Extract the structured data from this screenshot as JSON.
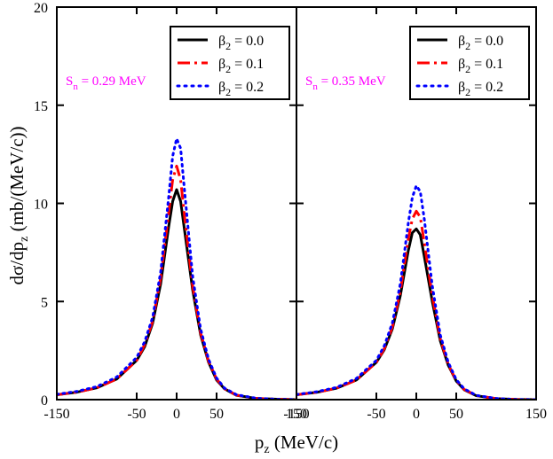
{
  "chart_data": {
    "type": "line",
    "shared": {
      "xlabel_main": "p",
      "xlabel_sub": "z",
      "xlabel_rest": " (MeV/c)",
      "ylabel_main": "dσ/dp",
      "ylabel_sub": "z",
      "ylabel_rest": " (mb/(MeV/c))",
      "xlim": [
        -150,
        150
      ],
      "ylim": [
        0,
        20
      ],
      "xticks": [
        -150,
        -50,
        0,
        50,
        150
      ],
      "yticks": [
        0,
        5,
        10,
        15,
        20
      ],
      "legend": [
        {
          "prefix": "β",
          "sub": "2",
          "rest": " = 0.0",
          "color": "#000000",
          "dash": "solid"
        },
        {
          "prefix": "β",
          "sub": "2",
          "rest": " = 0.1",
          "color": "#ff0000",
          "dash": "dashdot"
        },
        {
          "prefix": "β",
          "sub": "2",
          "rest": " = 0.2",
          "color": "#0000ff",
          "dash": "dotted"
        }
      ]
    },
    "panels": [
      {
        "annotation": {
          "main": "S",
          "sub": "n",
          "rest": " = 0.29 MeV",
          "color": "#ff00ff"
        },
        "series": [
          {
            "name": "β2 = 0.0",
            "x": [
              -150,
              -125,
              -100,
              -75,
              -50,
              -40,
              -30,
              -20,
              -10,
              -5,
              0,
              5,
              10,
              20,
              30,
              40,
              50,
              60,
              75,
              100,
              125,
              150
            ],
            "y": [
              0.25,
              0.38,
              0.6,
              1.05,
              2.0,
              2.7,
              3.9,
              5.9,
              8.8,
              10.1,
              10.7,
              10.1,
              8.6,
              5.6,
              3.3,
              1.9,
              1.0,
              0.55,
              0.22,
              0.06,
              0.02,
              0.0
            ]
          },
          {
            "name": "β2 = 0.1",
            "x": [
              -150,
              -125,
              -100,
              -75,
              -50,
              -40,
              -30,
              -20,
              -10,
              -5,
              0,
              5,
              10,
              20,
              30,
              40,
              50,
              60,
              75,
              100,
              125,
              150
            ],
            "y": [
              0.25,
              0.38,
              0.6,
              1.05,
              2.0,
              2.8,
              4.0,
              6.2,
              9.5,
              11.2,
              11.9,
              11.2,
              9.3,
              5.8,
              3.4,
              1.95,
              1.05,
              0.55,
              0.23,
              0.06,
              0.02,
              0.0
            ]
          },
          {
            "name": "β2 = 0.2",
            "x": [
              -150,
              -125,
              -100,
              -75,
              -50,
              -40,
              -30,
              -20,
              -10,
              -5,
              0,
              5,
              10,
              20,
              30,
              40,
              50,
              60,
              75,
              100,
              125,
              150
            ],
            "y": [
              0.27,
              0.42,
              0.66,
              1.15,
              2.15,
              2.95,
              4.2,
              6.5,
              10.3,
              12.4,
              13.3,
              12.8,
              10.6,
              6.3,
              3.6,
              2.05,
              1.1,
              0.58,
              0.25,
              0.07,
              0.02,
              0.0
            ]
          }
        ]
      },
      {
        "annotation": {
          "main": "S",
          "sub": "n",
          "rest": " = 0.35 MeV",
          "color": "#ff00ff"
        },
        "series": [
          {
            "name": "β2 = 0.0",
            "x": [
              -150,
              -125,
              -100,
              -75,
              -50,
              -40,
              -30,
              -20,
              -10,
              -5,
              0,
              5,
              10,
              20,
              30,
              40,
              50,
              60,
              75,
              100,
              125,
              150
            ],
            "y": [
              0.25,
              0.37,
              0.58,
              1.0,
              1.9,
              2.55,
              3.6,
              5.3,
              7.6,
              8.5,
              8.7,
              8.4,
              7.3,
              5.0,
              3.0,
              1.75,
              0.95,
              0.5,
              0.2,
              0.05,
              0.01,
              0.0
            ]
          },
          {
            "name": "β2 = 0.1",
            "x": [
              -150,
              -125,
              -100,
              -75,
              -50,
              -40,
              -30,
              -20,
              -10,
              -5,
              0,
              5,
              10,
              20,
              30,
              40,
              50,
              60,
              75,
              100,
              125,
              150
            ],
            "y": [
              0.25,
              0.37,
              0.58,
              1.0,
              1.9,
              2.6,
              3.7,
              5.5,
              8.2,
              9.2,
              9.6,
              9.3,
              8.0,
              5.3,
              3.1,
              1.8,
              0.97,
              0.52,
              0.21,
              0.05,
              0.01,
              0.0
            ]
          },
          {
            "name": "β2 = 0.2",
            "x": [
              -150,
              -125,
              -100,
              -75,
              -50,
              -40,
              -30,
              -20,
              -10,
              -5,
              0,
              5,
              10,
              20,
              30,
              40,
              50,
              60,
              75,
              100,
              125,
              150
            ],
            "y": [
              0.26,
              0.4,
              0.62,
              1.08,
              2.0,
              2.75,
              3.9,
              5.9,
              9.0,
              10.3,
              10.9,
              10.6,
              9.2,
              5.8,
              3.3,
              1.9,
              1.02,
              0.55,
              0.22,
              0.06,
              0.01,
              0.0
            ]
          }
        ]
      }
    ]
  }
}
